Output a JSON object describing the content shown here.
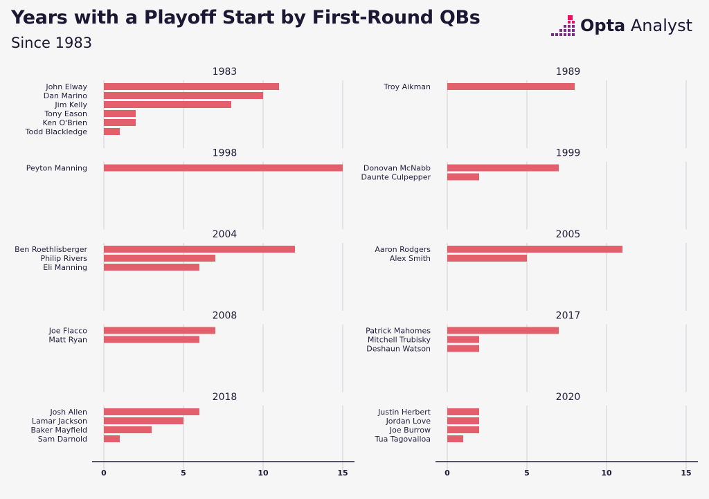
{
  "header": {
    "title": "Years with a Playoff Start by First-Round QBs",
    "subtitle": "Since 1983"
  },
  "brand": {
    "name_bold": "Opta",
    "name_regular": "Analyst",
    "accent_color": "#e8105f",
    "secondary_color": "#7b2a8a"
  },
  "chart_data": {
    "type": "bar",
    "orientation": "horizontal",
    "title": "Years with a Playoff Start by First-Round QBs",
    "subtitle": "Since 1983",
    "bar_color": "#e35f6b",
    "xlim": [
      0,
      15
    ],
    "xticks": [
      0,
      5,
      10,
      15
    ],
    "xlabel": "",
    "ylabel": "",
    "panels": [
      {
        "year": "1983",
        "players": [
          {
            "name": "John Elway",
            "value": 11
          },
          {
            "name": "Dan Marino",
            "value": 10
          },
          {
            "name": "Jim Kelly",
            "value": 8
          },
          {
            "name": "Tony Eason",
            "value": 2
          },
          {
            "name": "Ken O'Brien",
            "value": 2
          },
          {
            "name": "Todd Blackledge",
            "value": 1
          }
        ]
      },
      {
        "year": "1989",
        "players": [
          {
            "name": "Troy Aikman",
            "value": 8
          }
        ]
      },
      {
        "year": "1998",
        "players": [
          {
            "name": "Peyton Manning",
            "value": 15
          }
        ]
      },
      {
        "year": "1999",
        "players": [
          {
            "name": "Donovan McNabb",
            "value": 7
          },
          {
            "name": "Daunte Culpepper",
            "value": 2
          }
        ]
      },
      {
        "year": "2004",
        "players": [
          {
            "name": "Ben Roethlisberger",
            "value": 12
          },
          {
            "name": "Philip Rivers",
            "value": 7
          },
          {
            "name": "Eli Manning",
            "value": 6
          }
        ]
      },
      {
        "year": "2005",
        "players": [
          {
            "name": "Aaron Rodgers",
            "value": 11
          },
          {
            "name": "Alex Smith",
            "value": 5
          }
        ]
      },
      {
        "year": "2008",
        "players": [
          {
            "name": "Joe Flacco",
            "value": 7
          },
          {
            "name": "Matt Ryan",
            "value": 6
          }
        ]
      },
      {
        "year": "2017",
        "players": [
          {
            "name": "Patrick Mahomes",
            "value": 7
          },
          {
            "name": "Mitchell Trubisky",
            "value": 2
          },
          {
            "name": "Deshaun Watson",
            "value": 2
          }
        ]
      },
      {
        "year": "2018",
        "players": [
          {
            "name": "Josh Allen",
            "value": 6
          },
          {
            "name": "Lamar Jackson",
            "value": 5
          },
          {
            "name": "Baker Mayfield",
            "value": 3
          },
          {
            "name": "Sam Darnold",
            "value": 1
          }
        ]
      },
      {
        "year": "2020",
        "players": [
          {
            "name": "Justin Herbert",
            "value": 2
          },
          {
            "name": "Jordan Love",
            "value": 2
          },
          {
            "name": "Joe Burrow",
            "value": 2
          },
          {
            "name": "Tua Tagovailoa",
            "value": 1
          }
        ]
      }
    ]
  }
}
